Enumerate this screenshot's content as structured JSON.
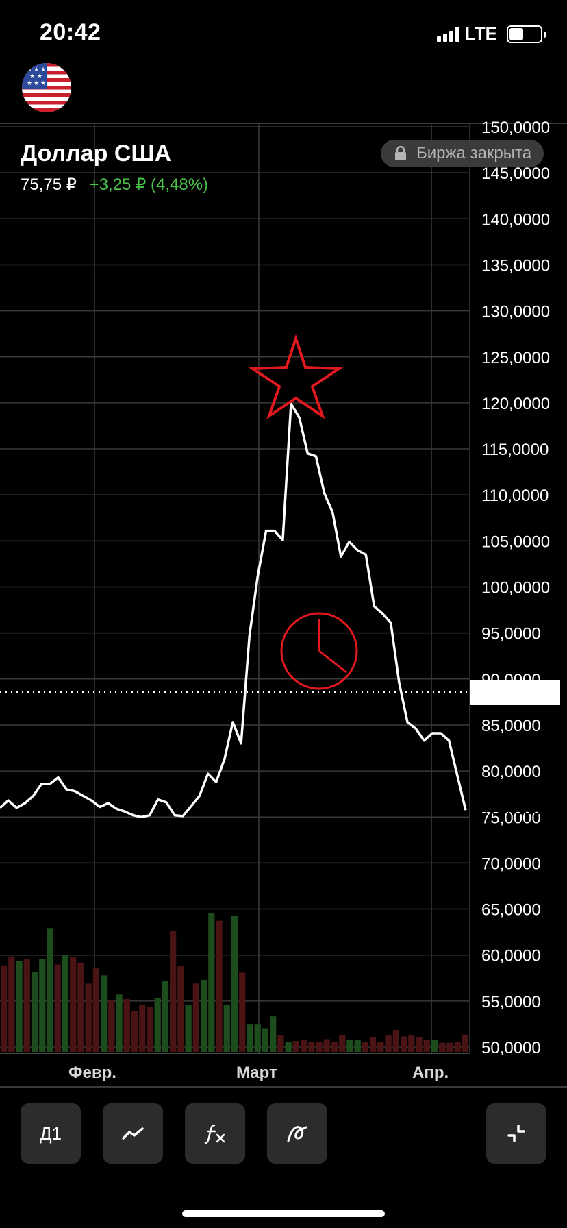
{
  "status_bar": {
    "time": "20:42",
    "network": "LTE"
  },
  "instrument": {
    "name": "Доллар США",
    "price": "75,75 ₽",
    "change": "+3,25 ₽ (4,48%)",
    "exchange_status": "Биржа закрыта"
  },
  "chart_data": {
    "type": "line",
    "y_labels": [
      "150,0000",
      "145,0000",
      "140,0000",
      "135,0000",
      "130,0000",
      "125,0000",
      "120,0000",
      "115,0000",
      "110,0000",
      "105,0000",
      "100,0000",
      "95,0000",
      "90,0000",
      "85,0000",
      "80,0000",
      "75,0000",
      "70,0000",
      "65,0000",
      "60,0000",
      "55,0000",
      "50,0000"
    ],
    "y_values": [
      150,
      145,
      140,
      135,
      130,
      125,
      120,
      115,
      110,
      105,
      100,
      95,
      90,
      85,
      80,
      75,
      70,
      65,
      60,
      55,
      50
    ],
    "x_labels": [
      "Февр.",
      "Март",
      "Апр."
    ],
    "current_value_label": "75,7500",
    "current_value": 75.75,
    "ylim": [
      50,
      150
    ],
    "line_values": [
      76,
      76.8,
      76,
      76.5,
      77.3,
      78.6,
      78.6,
      79.3,
      78,
      77.8,
      77.3,
      76.8,
      76.1,
      76.5,
      75.9,
      75.6,
      75.2,
      75,
      75.2,
      76.9,
      76.6,
      75.2,
      75.1,
      76.2,
      77.3,
      79.7,
      78.8,
      81.3,
      85.3,
      83,
      94.7,
      101.2,
      106.1,
      106.1,
      105.1,
      119.9,
      118.4,
      114.5,
      114.2,
      110.2,
      108.1,
      103.3,
      104.9,
      104,
      103.5,
      97.9,
      97.1,
      96.1,
      89.6,
      85.3,
      84.6,
      83.3,
      84.1,
      84.1,
      83.3,
      79.5,
      75.75
    ],
    "volume_bars": [
      {
        "v": 9.5,
        "up": false
      },
      {
        "v": 10.5,
        "up": false
      },
      {
        "v": 10,
        "up": true
      },
      {
        "v": 10.2,
        "up": false
      },
      {
        "v": 8.8,
        "up": true
      },
      {
        "v": 10.2,
        "up": true
      },
      {
        "v": 13.6,
        "up": true
      },
      {
        "v": 9.6,
        "up": false
      },
      {
        "v": 10.6,
        "up": true
      },
      {
        "v": 10.4,
        "up": false
      },
      {
        "v": 9.8,
        "up": false
      },
      {
        "v": 7.5,
        "up": false
      },
      {
        "v": 9.2,
        "up": false
      },
      {
        "v": 8.4,
        "up": true
      },
      {
        "v": 5.7,
        "up": false
      },
      {
        "v": 6.3,
        "up": true
      },
      {
        "v": 5.8,
        "up": false
      },
      {
        "v": 4.5,
        "up": false
      },
      {
        "v": 5.2,
        "up": false
      },
      {
        "v": 4.9,
        "up": false
      },
      {
        "v": 5.9,
        "up": true
      },
      {
        "v": 7.8,
        "up": true
      },
      {
        "v": 13.3,
        "up": false
      },
      {
        "v": 9.4,
        "up": false
      },
      {
        "v": 5.2,
        "up": true
      },
      {
        "v": 7.5,
        "up": false
      },
      {
        "v": 7.9,
        "up": true
      },
      {
        "v": 15.2,
        "up": true
      },
      {
        "v": 14.4,
        "up": false
      },
      {
        "v": 5.2,
        "up": true
      },
      {
        "v": 14.9,
        "up": true
      },
      {
        "v": 8.7,
        "up": false
      },
      {
        "v": 3.0,
        "up": true
      },
      {
        "v": 3.0,
        "up": true
      },
      {
        "v": 2.6,
        "up": true
      },
      {
        "v": 3.9,
        "up": true
      },
      {
        "v": 1.8,
        "up": false
      },
      {
        "v": 1.1,
        "up": true
      },
      {
        "v": 1.2,
        "up": false
      },
      {
        "v": 1.3,
        "up": false
      },
      {
        "v": 1.1,
        "up": false
      },
      {
        "v": 1.1,
        "up": false
      },
      {
        "v": 1.4,
        "up": false
      },
      {
        "v": 1.1,
        "up": false
      },
      {
        "v": 1.8,
        "up": false
      },
      {
        "v": 1.3,
        "up": true
      },
      {
        "v": 1.3,
        "up": true
      },
      {
        "v": 1.1,
        "up": false
      },
      {
        "v": 1.6,
        "up": false
      },
      {
        "v": 1.1,
        "up": false
      },
      {
        "v": 1.8,
        "up": false
      },
      {
        "v": 2.4,
        "up": false
      },
      {
        "v": 1.7,
        "up": false
      },
      {
        "v": 1.8,
        "up": false
      },
      {
        "v": 1.6,
        "up": false
      },
      {
        "v": 1.3,
        "up": false
      },
      {
        "v": 1.3,
        "up": true
      },
      {
        "v": 1.0,
        "up": false
      },
      {
        "v": 1.0,
        "up": false
      },
      {
        "v": 1.1,
        "up": false
      },
      {
        "v": 1.9,
        "up": false
      }
    ],
    "colors": {
      "line": "#ffffff",
      "grid": "#3a3a3a",
      "volume_up": "#1d4d1d",
      "volume_down": "#4a1414",
      "annotation": "#e0191f"
    }
  },
  "toolbar": {
    "interval_label": "Д1",
    "chart_type_icon": "line-chart-icon",
    "indicators_icon": "function-icon",
    "drawing_icon": "drawing-tool-icon",
    "collapse_icon": "collapse-icon"
  }
}
